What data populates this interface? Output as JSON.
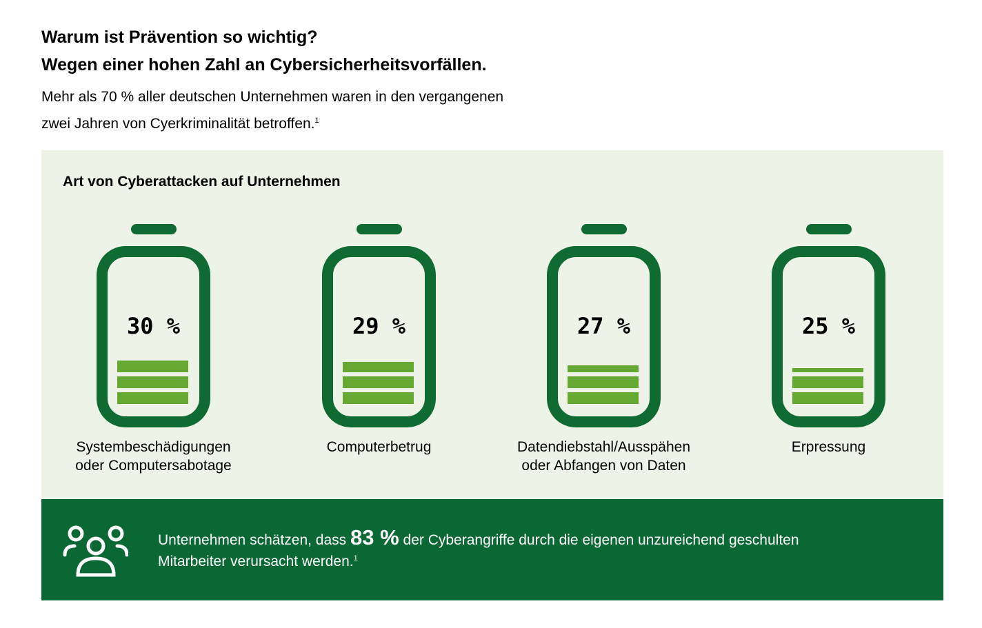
{
  "heading1": "Warum ist Prävention so wichtig?",
  "heading2": "Wegen einer hohen Zahl an Cybersicherheitsvorfällen.",
  "intro_line1": "Mehr als 70 % aller deutschen Unternehmen waren in den vergangenen",
  "intro_line2": "zwei Jahren von Cyerkriminalität betroffen.",
  "footnote": "1",
  "colors": {
    "panel": "#EDF3E6",
    "battery": "#106B32",
    "fill": "#65A832",
    "band": "#0A6835"
  },
  "chart_data": {
    "type": "bar",
    "title": "Art von Cyberattacken auf Unternehmen",
    "categories": [
      "Systembeschädigungen oder Computersabotage",
      "Computerbetrug",
      "Datendiebstahl/Ausspähen oder Abfangen von Daten",
      "Erpressung"
    ],
    "label_lines": [
      [
        "Systembeschädigungen",
        "oder Computersabotage"
      ],
      [
        "Computerbetrug",
        ""
      ],
      [
        "Datendiebstahl/Ausspähen",
        "oder Abfangen von Daten"
      ],
      [
        "Erpressung",
        ""
      ]
    ],
    "values": [
      30,
      29,
      27,
      25
    ],
    "value_labels": [
      "30 %",
      "29 %",
      "27 %",
      "25 %"
    ],
    "unit": "%"
  },
  "callout": {
    "icon": "people-group-icon",
    "pre": "Unternehmen schätzen, dass",
    "value": "83 %",
    "post": "der Cyberangriffe durch die eigenen unzureichend geschulten",
    "line2": "Mitarbeiter verursacht werden.",
    "footnote": "1"
  }
}
